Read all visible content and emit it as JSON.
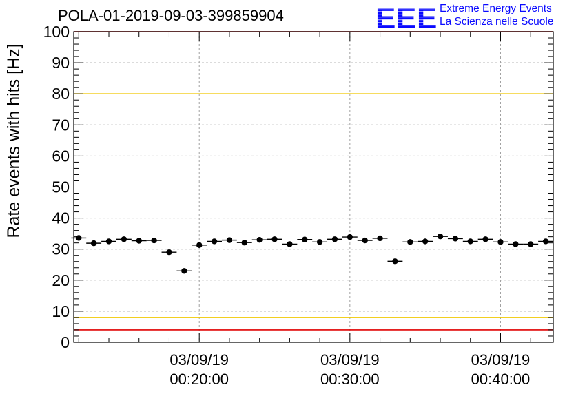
{
  "chart_data": {
    "type": "scatter",
    "title": "POLA-01-2019-09-03-399859904",
    "ylabel": "Rate events with hits [Hz]",
    "xlabel": "",
    "ylim": [
      0,
      100
    ],
    "xlim": [
      "2019-09-03 00:11:40",
      "2019-09-03 00:43:30"
    ],
    "y_ticks": [
      0,
      10,
      20,
      30,
      40,
      50,
      60,
      70,
      80,
      90,
      100
    ],
    "x_ticks": [
      {
        "date": "03/09/19",
        "time": "00:20:00",
        "x": "2019-09-03 00:20:00"
      },
      {
        "date": "03/09/19",
        "time": "00:30:00",
        "x": "2019-09-03 00:30:00"
      },
      {
        "date": "03/09/19",
        "time": "00:40:00",
        "x": "2019-09-03 00:40:00"
      }
    ],
    "grid": true,
    "reference_lines": [
      {
        "y": 80,
        "color": "#f0c800"
      },
      {
        "y": 8,
        "color": "#f0c800"
      },
      {
        "y": 4,
        "color": "#e00000"
      },
      {
        "y": 100,
        "color": "#e00000"
      }
    ],
    "bin_width": "00:01:00",
    "series": [
      {
        "x": [
          "00:12:00",
          "00:13:00",
          "00:14:00",
          "00:15:00",
          "00:16:00",
          "00:17:00",
          "00:18:00",
          "00:19:00",
          "00:20:00",
          "00:21:00",
          "00:22:00",
          "00:23:00",
          "00:24:00",
          "00:25:00",
          "00:26:00",
          "00:27:00",
          "00:28:00",
          "00:29:00",
          "00:30:00",
          "00:31:00",
          "00:32:00",
          "00:33:00",
          "00:34:00",
          "00:35:00",
          "00:36:00",
          "00:37:00",
          "00:38:00",
          "00:39:00",
          "00:40:00",
          "00:41:00",
          "00:42:00",
          "00:43:00"
        ],
        "values": [
          33.6,
          31.9,
          32.5,
          33.2,
          32.7,
          32.8,
          29.0,
          23.0,
          31.3,
          32.5,
          32.9,
          32.1,
          33.0,
          33.2,
          31.6,
          33.1,
          32.3,
          33.2,
          33.9,
          32.8,
          33.5,
          26.1,
          32.3,
          32.5,
          34.1,
          33.4,
          32.5,
          33.2,
          32.3,
          31.6,
          31.6,
          32.5
        ]
      }
    ]
  },
  "logo": {
    "letters": "EEE",
    "line1": "Extreme Energy Events",
    "line2": "La Scienza nelle Scuole",
    "color": "#0a0aff"
  }
}
